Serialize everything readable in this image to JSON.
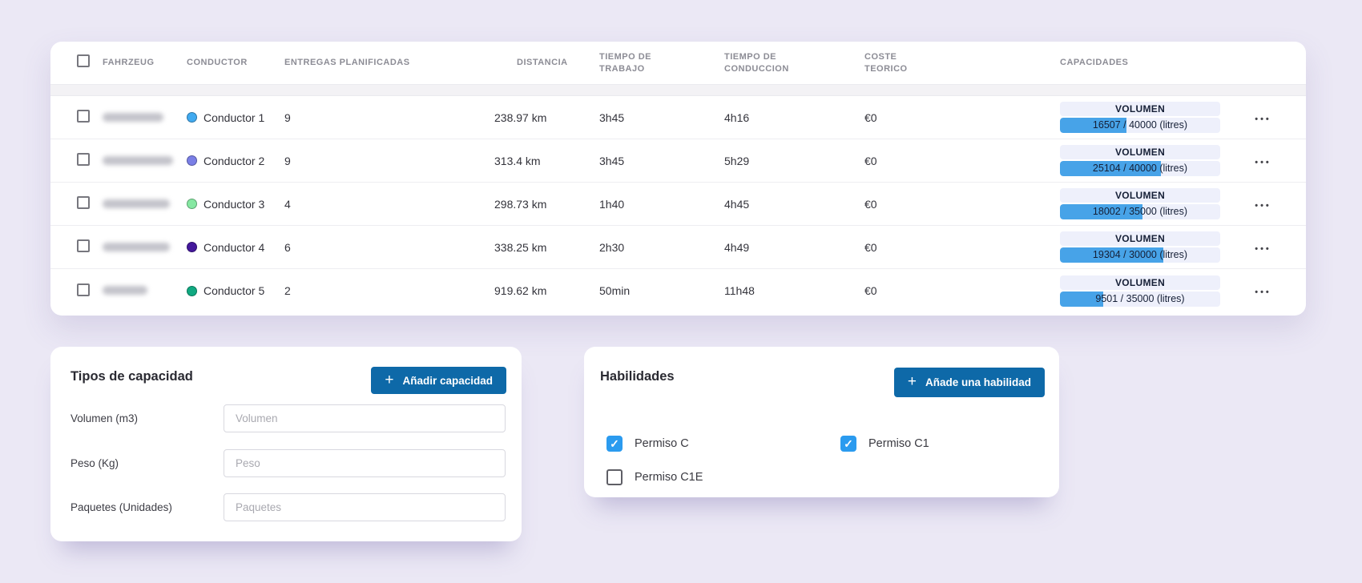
{
  "icons": {
    "plus": "+",
    "row_menu": "•••",
    "check": "✓"
  },
  "colors": {
    "page_background": "#ebe8f5",
    "accent_button_blue": "#0e69a8",
    "capacity_bar_fill": "#47a3e8",
    "checkbox_checked_blue": "#2b9bef"
  },
  "table": {
    "select_all_checked": false,
    "columns": [
      "FAHRZEUG",
      "CONDUCTOR",
      "ENTREGAS PLANIFICADAS",
      "DISTANCIA",
      "TIEMPO DE TRABAJO",
      "TIEMPO DE CONDUCCION",
      "COSTE TEORICO",
      "CAPACIDADES"
    ],
    "rows": [
      {
        "selected": false,
        "vehicle_redacted": true,
        "conductor": {
          "name": "Conductor 1",
          "color": "#41aaf0"
        },
        "deliveries": "9",
        "distance": "238.97 km",
        "work_time": "3h45",
        "driving_time": "4h16",
        "cost": "€0",
        "capacity": {
          "label": "VOLUMEN",
          "value": 16507,
          "max": 40000,
          "unit": "litres",
          "display": "16507 / 40000 (litres)"
        }
      },
      {
        "selected": false,
        "vehicle_redacted": true,
        "conductor": {
          "name": "Conductor 2",
          "color": "#7a7fe6"
        },
        "deliveries": "9",
        "distance": "313.4 km",
        "work_time": "3h45",
        "driving_time": "5h29",
        "cost": "€0",
        "capacity": {
          "label": "VOLUMEN",
          "value": 25104,
          "max": 40000,
          "unit": "litres",
          "display": "25104 / 40000 (litres)"
        }
      },
      {
        "selected": false,
        "vehicle_redacted": true,
        "conductor": {
          "name": "Conductor 3",
          "color": "#86e8a2"
        },
        "deliveries": "4",
        "distance": "298.73 km",
        "work_time": "1h40",
        "driving_time": "4h45",
        "cost": "€0",
        "capacity": {
          "label": "VOLUMEN",
          "value": 18002,
          "max": 35000,
          "unit": "litres",
          "display": "18002 / 35000 (litres)"
        }
      },
      {
        "selected": false,
        "vehicle_redacted": true,
        "conductor": {
          "name": "Conductor 4",
          "color": "#44189c"
        },
        "deliveries": "6",
        "distance": "338.25 km",
        "work_time": "2h30",
        "driving_time": "4h49",
        "cost": "€0",
        "capacity": {
          "label": "VOLUMEN",
          "value": 19304,
          "max": 30000,
          "unit": "litres",
          "display": "19304 / 30000 (litres)"
        }
      },
      {
        "selected": false,
        "vehicle_redacted": true,
        "conductor": {
          "name": "Conductor 5",
          "color": "#10a981"
        },
        "deliveries": "2",
        "distance": "919.62 km",
        "work_time": "50min",
        "driving_time": "11h48",
        "cost": "€0",
        "capacity": {
          "label": "VOLUMEN",
          "value": 9501,
          "max": 35000,
          "unit": "litres",
          "display": "9501 / 35000 (litres)"
        }
      }
    ]
  },
  "capacity_panel": {
    "title": "Tipos de capacidad",
    "add_button_label": "Añadir capacidad",
    "fields": [
      {
        "label": "Volumen (m3)",
        "placeholder": "Volumen",
        "value": ""
      },
      {
        "label": "Peso (Kg)",
        "placeholder": "Peso",
        "value": ""
      },
      {
        "label": "Paquetes (Unidades)",
        "placeholder": "Paquetes",
        "value": ""
      }
    ]
  },
  "skills_panel": {
    "title": "Habilidades",
    "add_button_label": "Añade una habilidad",
    "skills": [
      {
        "label": "Permiso C",
        "checked": true
      },
      {
        "label": "Permiso C1",
        "checked": true
      },
      {
        "label": "Permiso C1E",
        "checked": false
      }
    ]
  }
}
